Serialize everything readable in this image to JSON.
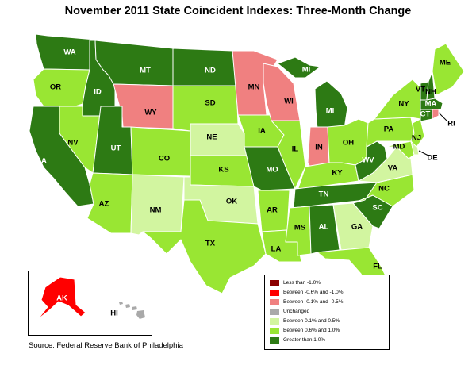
{
  "title": "November 2011 State Coincident Indexes: Three-Month Change",
  "source": "Source: Federal Reserve Bank of Philadelphia",
  "colors": {
    "lt_neg1": "#8b0000",
    "neg06_neg1": "#ff0000",
    "neg01_neg05": "#f08080",
    "unchanged": "#a9a9a9",
    "p01_p05": "#d2f5a0",
    "p06_p1": "#99e633",
    "gt_p1": "#2d7a14"
  },
  "legend": [
    {
      "label": "Less than -1.0%",
      "color": "#8b0000"
    },
    {
      "label": "Between -0.6% and -1.0%",
      "color": "#ff0000"
    },
    {
      "label": "Between -0.1% and -0.5%",
      "color": "#f08080"
    },
    {
      "label": "Unchanged",
      "color": "#a9a9a9"
    },
    {
      "label": "Between 0.1% and 0.5%",
      "color": "#d2f5a0"
    },
    {
      "label": "Between 0.6% and 1.0%",
      "color": "#99e633"
    },
    {
      "label": "Greater than 1.0%",
      "color": "#2d7a14"
    }
  ],
  "states": {
    "WA": {
      "category": "Greater than 1.0%"
    },
    "OR": {
      "category": "Between 0.6% and 1.0%"
    },
    "CA": {
      "category": "Greater than 1.0%"
    },
    "NV": {
      "category": "Between 0.6% and 1.0%"
    },
    "ID": {
      "category": "Greater than 1.0%"
    },
    "MT": {
      "category": "Greater than 1.0%"
    },
    "WY": {
      "category": "Between -0.1% and -0.5%"
    },
    "UT": {
      "category": "Greater than 1.0%"
    },
    "AZ": {
      "category": "Between 0.6% and 1.0%"
    },
    "CO": {
      "category": "Between 0.6% and 1.0%"
    },
    "NM": {
      "category": "Between 0.1% and 0.5%"
    },
    "ND": {
      "category": "Greater than 1.0%"
    },
    "SD": {
      "category": "Between 0.6% and 1.0%"
    },
    "NE": {
      "category": "Between 0.1% and 0.5%"
    },
    "KS": {
      "category": "Between 0.6% and 1.0%"
    },
    "OK": {
      "category": "Between 0.1% and 0.5%"
    },
    "TX": {
      "category": "Between 0.6% and 1.0%"
    },
    "MN": {
      "category": "Between -0.1% and -0.5%"
    },
    "IA": {
      "category": "Between 0.6% and 1.0%"
    },
    "MO": {
      "category": "Greater than 1.0%"
    },
    "AR": {
      "category": "Between 0.6% and 1.0%"
    },
    "LA": {
      "category": "Between 0.6% and 1.0%"
    },
    "WI": {
      "category": "Between -0.1% and -0.5%"
    },
    "IL": {
      "category": "Between 0.6% and 1.0%"
    },
    "MI": {
      "category": "Greater than 1.0%"
    },
    "IN": {
      "category": "Between -0.1% and -0.5%"
    },
    "OH": {
      "category": "Between 0.6% and 1.0%"
    },
    "KY": {
      "category": "Between 0.6% and 1.0%"
    },
    "TN": {
      "category": "Greater than 1.0%"
    },
    "MS": {
      "category": "Between 0.6% and 1.0%"
    },
    "AL": {
      "category": "Greater than 1.0%"
    },
    "GA": {
      "category": "Between 0.1% and 0.5%"
    },
    "FL": {
      "category": "Between 0.6% and 1.0%"
    },
    "SC": {
      "category": "Greater than 1.0%"
    },
    "NC": {
      "category": "Between 0.6% and 1.0%"
    },
    "VA": {
      "category": "Between 0.1% and 0.5%"
    },
    "WV": {
      "category": "Greater than 1.0%"
    },
    "PA": {
      "category": "Between 0.6% and 1.0%"
    },
    "NY": {
      "category": "Between 0.6% and 1.0%"
    },
    "MD": {
      "category": "Between 0.6% and 1.0%"
    },
    "DE": {
      "category": "Between 0.1% and 0.5%"
    },
    "NJ": {
      "category": "Between 0.6% and 1.0%"
    },
    "CT": {
      "category": "Greater than 1.0%"
    },
    "RI": {
      "category": "Between -0.1% and -0.5%"
    },
    "MA": {
      "category": "Greater than 1.0%"
    },
    "VT": {
      "category": "Greater than 1.0%"
    },
    "NH": {
      "category": "Greater than 1.0%"
    },
    "ME": {
      "category": "Between 0.6% and 1.0%"
    },
    "AK": {
      "category": "Between -0.6% and -1.0%"
    },
    "HI": {
      "category": "Unchanged"
    }
  }
}
